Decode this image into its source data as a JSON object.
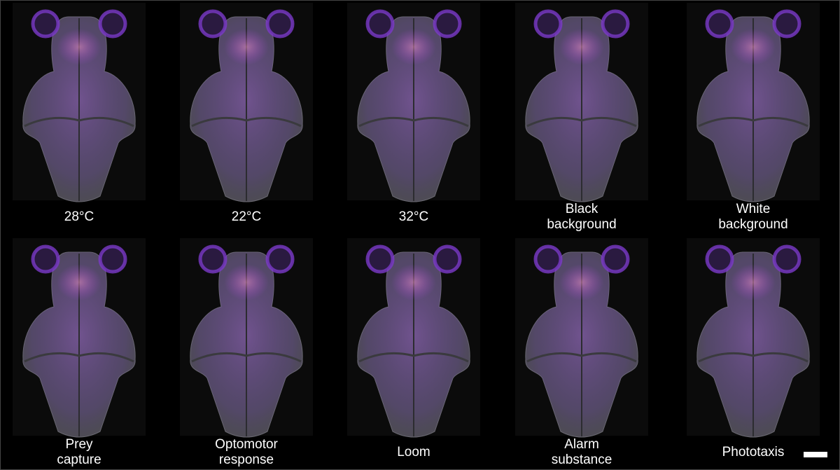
{
  "panels": [
    {
      "label": [
        "28°C"
      ]
    },
    {
      "label": [
        "22°C"
      ]
    },
    {
      "label": [
        "32°C"
      ]
    },
    {
      "label": [
        "Black",
        "background"
      ]
    },
    {
      "label": [
        "White",
        "background"
      ]
    },
    {
      "label": [
        "Prey",
        "capture"
      ]
    },
    {
      "label": [
        "Optomotor",
        "response"
      ]
    },
    {
      "label": [
        "Loom"
      ]
    },
    {
      "label": [
        "Alarm",
        "substance"
      ]
    },
    {
      "label": [
        "Phototaxis"
      ]
    }
  ]
}
